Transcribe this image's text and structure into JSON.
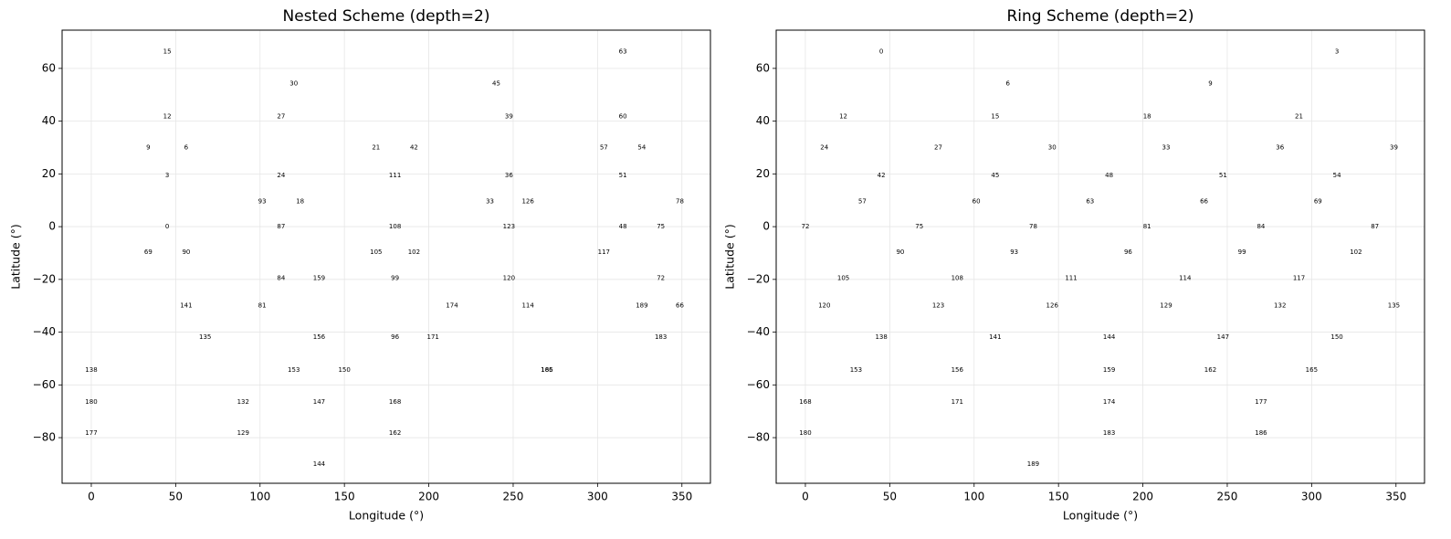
{
  "chart_data": [
    {
      "type": "scatter",
      "title": "Nested Scheme (depth=2)",
      "x_label": "Longitude (°)",
      "y_label": "Latitude (°)",
      "xlim": [
        -17.3,
        366.9
      ],
      "ylim": [
        -97.3,
        74.5
      ],
      "xticks": [
        0,
        50,
        100,
        150,
        200,
        250,
        300,
        350
      ],
      "yticks": [
        {
          "value": -80,
          "label": "−80"
        },
        {
          "value": -60,
          "label": "−60"
        },
        {
          "value": -40,
          "label": "−40"
        },
        {
          "value": -20,
          "label": "−20"
        },
        0,
        20,
        40,
        60
      ],
      "grid": true,
      "color": "#000000",
      "point_labels": [
        15,
        63,
        30,
        45,
        12,
        27,
        39,
        60,
        9,
        6,
        21,
        42,
        57,
        54,
        3,
        24,
        111,
        36,
        51,
        93,
        18,
        33,
        126,
        78,
        0,
        87,
        108,
        123,
        48,
        75,
        69,
        90,
        105,
        102,
        117,
        84,
        159,
        99,
        120,
        72,
        141,
        81,
        174,
        114,
        189,
        66,
        135,
        156,
        96,
        171,
        183,
        138,
        153,
        150,
        165,
        186,
        180,
        132,
        147,
        168,
        177,
        129,
        162,
        144
      ],
      "x": [
        45,
        315,
        120,
        240,
        45,
        112.5,
        247.5,
        315,
        33.75,
        56.25,
        168.75,
        191.25,
        303.75,
        326.25,
        45,
        112.5,
        180,
        247.5,
        315,
        101.25,
        123.75,
        236.25,
        258.75,
        348.75,
        45,
        112.5,
        180,
        247.5,
        315,
        337.5,
        33.75,
        56.25,
        168.75,
        191.25,
        303.75,
        112.5,
        135,
        180,
        247.5,
        337.5,
        56.25,
        101.25,
        213.75,
        258.75,
        326.25,
        348.75,
        67.5,
        135,
        180,
        202.5,
        337.5,
        0,
        120,
        150,
        270,
        270,
        0,
        90,
        135,
        180,
        0,
        90,
        180,
        135
      ],
      "values": [
        66.4,
        66.4,
        54.3,
        54.3,
        41.8,
        41.8,
        41.8,
        41.8,
        30,
        30,
        30,
        30,
        30,
        30,
        19.5,
        19.5,
        19.5,
        19.5,
        19.5,
        9.6,
        9.6,
        9.6,
        9.6,
        9.6,
        0,
        0,
        0,
        0,
        0,
        0,
        -9.6,
        -9.6,
        -9.6,
        -9.6,
        -9.6,
        -19.5,
        -19.5,
        -19.5,
        -19.5,
        -19.5,
        -30,
        -30,
        -30,
        -30,
        -30,
        -30,
        -41.8,
        -41.8,
        -41.8,
        -41.8,
        -41.8,
        -54.3,
        -54.3,
        -54.3,
        -54.3,
        -54.3,
        -66.4,
        -66.4,
        -66.4,
        -66.4,
        -78.3,
        -78.3,
        -78.3,
        -90
      ]
    },
    {
      "type": "scatter",
      "title": "Ring Scheme (depth=2)",
      "x_label": "Longitude (°)",
      "y_label": "Latitude (°)",
      "xlim": [
        -17.3,
        366.9
      ],
      "ylim": [
        -97.3,
        74.5
      ],
      "xticks": [
        0,
        50,
        100,
        150,
        200,
        250,
        300,
        350
      ],
      "yticks": [
        {
          "value": -80,
          "label": "−80"
        },
        {
          "value": -60,
          "label": "−60"
        },
        {
          "value": -40,
          "label": "−40"
        },
        {
          "value": -20,
          "label": "−20"
        },
        0,
        20,
        40,
        60
      ],
      "grid": true,
      "color": "#000000",
      "point_labels": [
        0,
        3,
        6,
        9,
        12,
        15,
        18,
        21,
        24,
        27,
        30,
        33,
        36,
        39,
        42,
        45,
        48,
        51,
        54,
        57,
        60,
        63,
        66,
        69,
        72,
        75,
        78,
        81,
        84,
        87,
        90,
        93,
        96,
        99,
        102,
        105,
        108,
        111,
        114,
        117,
        120,
        123,
        126,
        129,
        132,
        135,
        138,
        141,
        144,
        147,
        150,
        153,
        156,
        159,
        162,
        165,
        168,
        171,
        174,
        177,
        180,
        183,
        186,
        189
      ],
      "x": [
        45,
        315,
        120,
        240,
        22.5,
        112.5,
        202.5,
        292.5,
        11.25,
        78.75,
        146.25,
        213.75,
        281.25,
        348.75,
        45,
        112.5,
        180,
        247.5,
        315,
        33.75,
        101.25,
        168.75,
        236.25,
        303.75,
        0,
        67.5,
        135,
        202.5,
        270,
        337.5,
        56.25,
        123.75,
        191.25,
        258.75,
        326.25,
        22.5,
        90,
        157.5,
        225,
        292.5,
        11.25,
        78.75,
        146.25,
        213.75,
        281.25,
        348.75,
        45,
        112.5,
        180,
        247.5,
        315,
        30,
        90,
        180,
        240,
        300,
        0,
        90,
        180,
        270,
        0,
        180,
        270,
        135
      ],
      "values": [
        66.4,
        66.4,
        54.3,
        54.3,
        41.8,
        41.8,
        41.8,
        41.8,
        30,
        30,
        30,
        30,
        30,
        30,
        19.5,
        19.5,
        19.5,
        19.5,
        19.5,
        9.6,
        9.6,
        9.6,
        9.6,
        9.6,
        0,
        0,
        0,
        0,
        0,
        0,
        -9.6,
        -9.6,
        -9.6,
        -9.6,
        -9.6,
        -19.5,
        -19.5,
        -19.5,
        -19.5,
        -19.5,
        -30,
        -30,
        -30,
        -30,
        -30,
        -30,
        -41.8,
        -41.8,
        -41.8,
        -41.8,
        -41.8,
        -54.3,
        -54.3,
        -54.3,
        -54.3,
        -54.3,
        -66.4,
        -66.4,
        -66.4,
        -66.4,
        -78.3,
        -78.3,
        -78.3,
        -90
      ]
    }
  ]
}
